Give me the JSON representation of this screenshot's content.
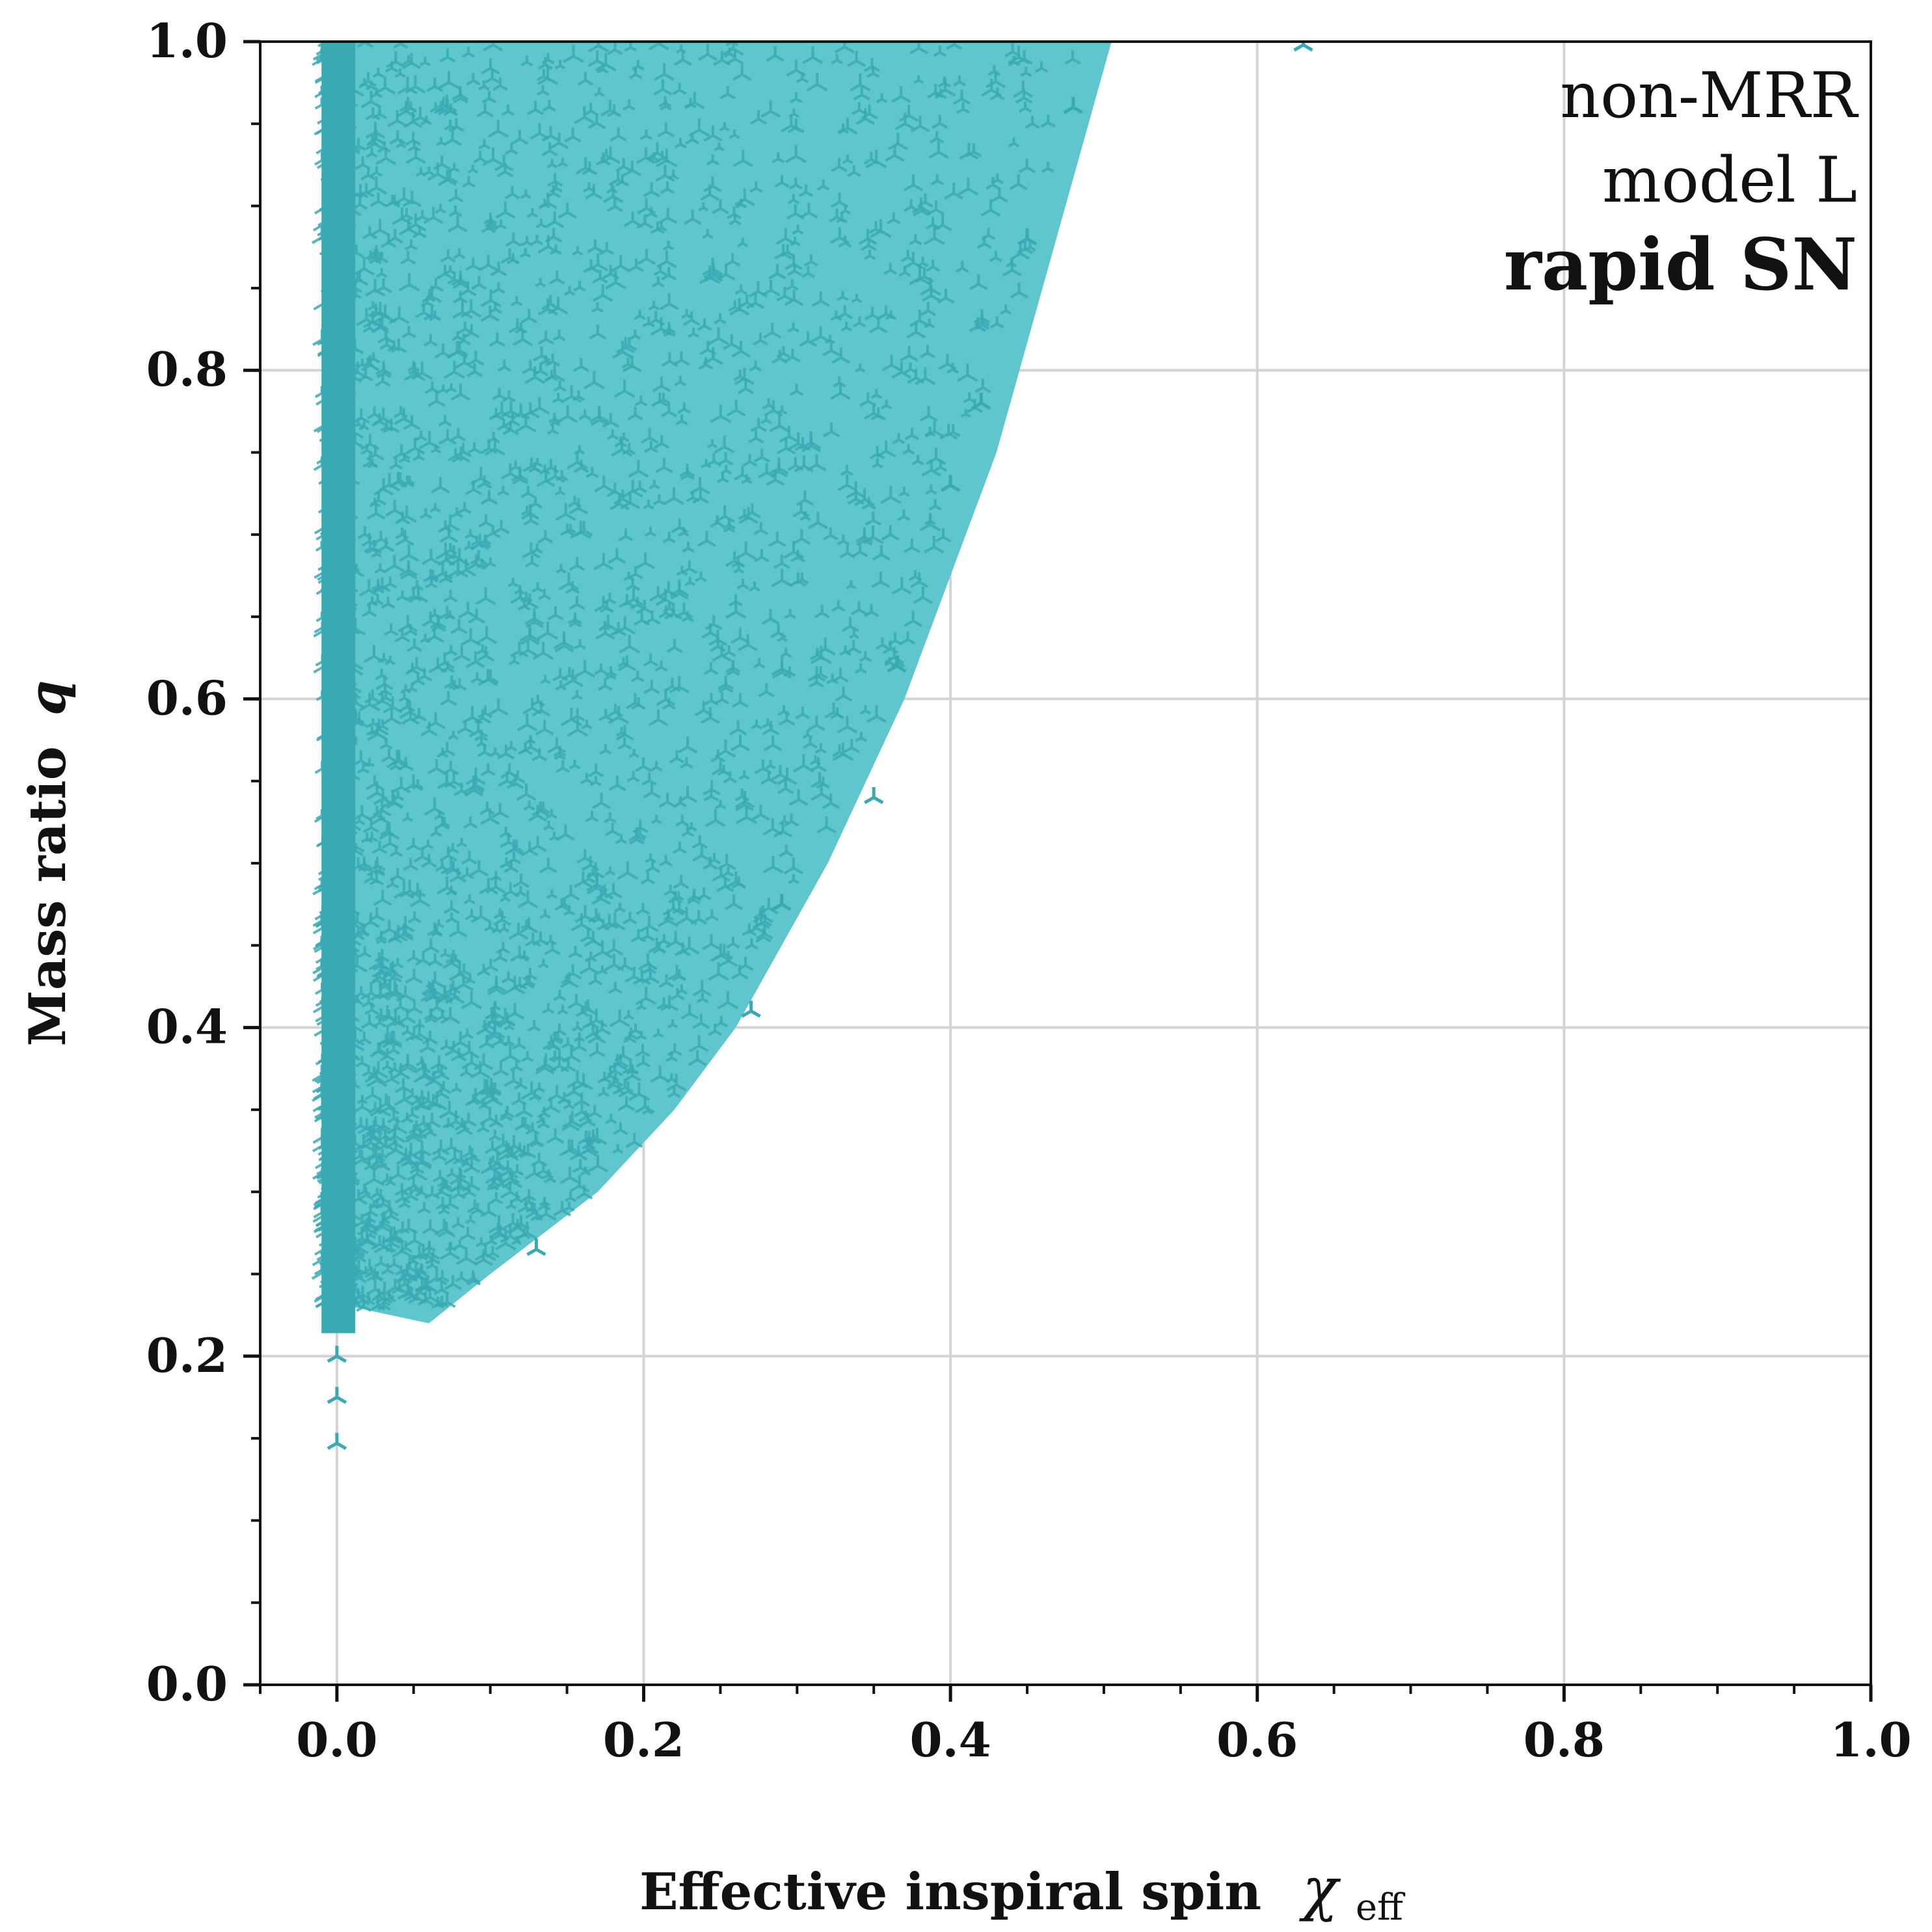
{
  "chart_data": {
    "type": "scatter",
    "xlabel": "Effective inspiral spin",
    "xlabel_symbol": "χ",
    "xlabel_subscript": "eff",
    "ylabel": "Mass ratio",
    "ylabel_symbol": "q",
    "xlim": [
      -0.05,
      1.0
    ],
    "ylim": [
      0.0,
      1.0
    ],
    "xticks": [
      0.0,
      0.2,
      0.4,
      0.6,
      0.8,
      1.0
    ],
    "xtick_labels": [
      "0.0",
      "0.2",
      "0.4",
      "0.6",
      "0.8",
      "1.0"
    ],
    "yticks": [
      0.0,
      0.2,
      0.4,
      0.6,
      0.8,
      1.0
    ],
    "ytick_labels": [
      "0.0",
      "0.2",
      "0.4",
      "0.6",
      "0.8",
      "1.0"
    ],
    "grid": true,
    "annotations": [
      "non-MRR",
      "model L",
      "rapid SN"
    ],
    "annotation_placement": "top-right",
    "colors": {
      "fill": "#5ec6cc",
      "markers": "#3aa9b3",
      "grid": "#d3d3d3",
      "axes": "#111111"
    },
    "region": {
      "description_x": "left edge of populated region",
      "x_min": -0.01,
      "upper_boundary": [
        {
          "q": 0.22,
          "x": 0.06
        },
        {
          "q": 0.25,
          "x": 0.1
        },
        {
          "q": 0.3,
          "x": 0.17
        },
        {
          "q": 0.35,
          "x": 0.22
        },
        {
          "q": 0.4,
          "x": 0.26
        },
        {
          "q": 0.45,
          "x": 0.29
        },
        {
          "q": 0.5,
          "x": 0.32
        },
        {
          "q": 0.55,
          "x": 0.345
        },
        {
          "q": 0.6,
          "x": 0.37
        },
        {
          "q": 0.65,
          "x": 0.39
        },
        {
          "q": 0.7,
          "x": 0.41
        },
        {
          "q": 0.75,
          "x": 0.43
        },
        {
          "q": 0.8,
          "x": 0.445
        },
        {
          "q": 0.85,
          "x": 0.46
        },
        {
          "q": 0.9,
          "x": 0.475
        },
        {
          "q": 0.95,
          "x": 0.49
        },
        {
          "q": 1.0,
          "x": 0.505
        }
      ],
      "low_q_floor": 0.23
    },
    "markers": [
      {
        "x": 0.0,
        "y": 0.2
      },
      {
        "x": 0.0,
        "y": 0.175
      },
      {
        "x": 0.0,
        "y": 0.147
      },
      {
        "x": 0.13,
        "y": 0.265
      },
      {
        "x": 0.27,
        "y": 0.41
      },
      {
        "x": 0.29,
        "y": 0.475
      },
      {
        "x": 0.35,
        "y": 0.54
      },
      {
        "x": 0.365,
        "y": 0.62
      },
      {
        "x": 0.4,
        "y": 0.73
      },
      {
        "x": 0.42,
        "y": 0.78
      },
      {
        "x": 0.45,
        "y": 0.88
      },
      {
        "x": 0.48,
        "y": 0.96
      },
      {
        "x": 0.63,
        "y": 0.998
      }
    ]
  }
}
